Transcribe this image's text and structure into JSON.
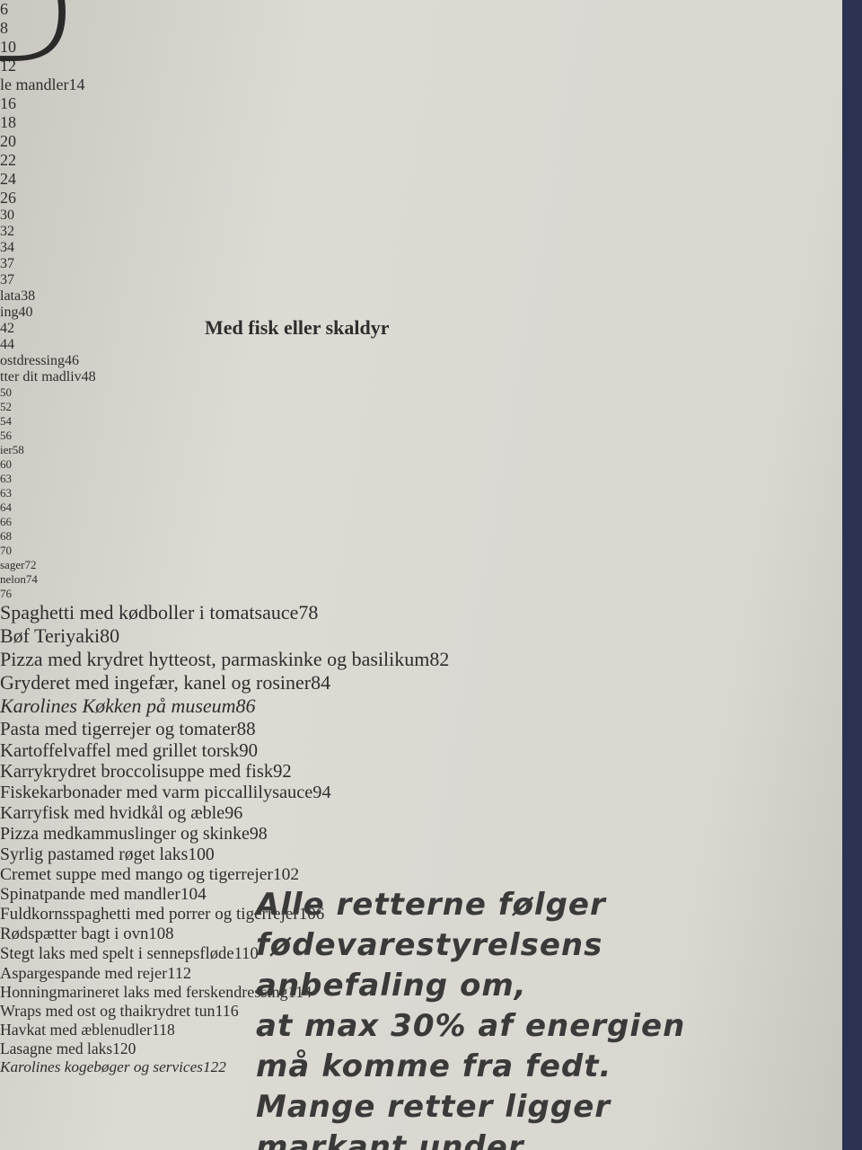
{
  "heading_letter": "D",
  "left_groups": [
    [
      {
        "text": "",
        "page": "6"
      },
      {
        "text": "",
        "page": "8"
      },
      {
        "text": "",
        "page": "10"
      },
      {
        "text": "",
        "page": "12"
      },
      {
        "text": "le mandler",
        "page": "14"
      },
      {
        "text": "",
        "page": "16"
      },
      {
        "text": "",
        "page": "18"
      },
      {
        "text": "",
        "page": "20"
      },
      {
        "text": "",
        "page": "22"
      },
      {
        "text": "",
        "page": "24"
      },
      {
        "text": "",
        "page": "26"
      }
    ],
    [
      {
        "text": "",
        "page": "30"
      },
      {
        "text": "",
        "page": "32"
      },
      {
        "text": "",
        "page": "34"
      },
      {
        "text": "",
        "page": "37"
      },
      {
        "text": "",
        "page": "37"
      },
      {
        "text": "lata",
        "page": "38"
      },
      {
        "text": "ing",
        "page": "40"
      },
      {
        "text": "",
        "page": "42"
      },
      {
        "text": "",
        "page": "44"
      },
      {
        "text": "ostdressing",
        "page": "46"
      },
      {
        "text": "tter dit madliv",
        "page": "48"
      }
    ],
    [
      {
        "text": "",
        "page": "50"
      },
      {
        "text": "",
        "page": "52"
      },
      {
        "text": "",
        "page": "54"
      },
      {
        "text": "",
        "page": "56"
      },
      {
        "text": "ier",
        "page": "58"
      },
      {
        "text": "",
        "page": "60"
      },
      {
        "text": "",
        "page": "63"
      },
      {
        "text": "",
        "page": "63"
      },
      {
        "text": "",
        "page": "64"
      },
      {
        "text": "",
        "page": "66"
      },
      {
        "text": "",
        "page": "68"
      },
      {
        "text": "",
        "page": "70"
      },
      {
        "text": "sager",
        "page": "72"
      },
      {
        "text": "nelon",
        "page": "74"
      },
      {
        "text": "",
        "page": "76"
      }
    ]
  ],
  "right_entries": [
    {
      "text": "Spaghetti med kødboller i tomatsauce",
      "page": "78"
    },
    {
      "text": "Bøf Teriyaki",
      "page": "80"
    },
    {
      "text": "Pizza med krydret hytteost, parmaskinke og basilikum",
      "page": "82"
    },
    {
      "text": "Gryderet med ingefær, kanel og rosiner",
      "page": "84"
    },
    {
      "text": "Karolines Køkken på museum",
      "page": "86",
      "italic": true
    }
  ],
  "fish_section": {
    "title": "Med fisk eller skaldyr",
    "entries": [
      {
        "text": "Pasta med tigerrejer og tomater",
        "page": "88"
      },
      {
        "text": "Kartoffelvaffel med grillet torsk",
        "page": "90"
      },
      {
        "text": "Karrykrydret broccolisuppe med fisk",
        "page": "92"
      },
      {
        "text": "Fiskekarbonader med varm piccallilysauce",
        "page": "94"
      },
      {
        "text": "Karryfisk med hvidkål og æble",
        "page": "96"
      },
      {
        "text": "Pizza medkammuslinger og skinke",
        "page": "98"
      },
      {
        "text": "Syrlig pastamed røget laks",
        "page": "100"
      },
      {
        "text": "Cremet suppe med mango og tigerrejer",
        "page": "102"
      },
      {
        "text": "Spinatpande med mandler",
        "page": "104"
      },
      {
        "text": "Fuldkornsspaghetti med porrer og tigerrejer",
        "page": "106"
      },
      {
        "text": "Rødspætter bagt i ovn",
        "page": "108"
      },
      {
        "text": "Stegt laks med spelt i sennepsfløde",
        "page": "110"
      },
      {
        "text": "Aspargespande med rejer",
        "page": "112"
      },
      {
        "text": "Honningmarineret laks med ferskendressing",
        "page": "114"
      },
      {
        "text": "Wraps med ost og thaikrydret tun",
        "page": "116"
      },
      {
        "text": "Havkat med æblenudler",
        "page": "118"
      },
      {
        "text": "Lasagne med laks",
        "page": "120"
      },
      {
        "text": "Karolines kogebøger og services",
        "page": "122",
        "italic": true
      }
    ]
  },
  "note_lines": [
    "Alle retterne følger",
    "fødevarestyrelsens",
    "anbefaling om,",
    "at max 30% af energien",
    "må komme fra fedt.",
    "Mange retter ligger",
    "markant under."
  ]
}
